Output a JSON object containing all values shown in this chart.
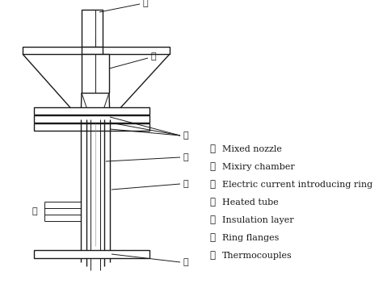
{
  "bg_color": "#ffffff",
  "line_color": "#1a1a1a",
  "legend_items": [
    [
      "①",
      "Mixed nozzle"
    ],
    [
      "②",
      "Mixiry chamber"
    ],
    [
      "③",
      "Electric current introducing ring"
    ],
    [
      "④",
      "Heated tube"
    ],
    [
      "⑤",
      "Insulation layer"
    ],
    [
      "⑥",
      "Ring flanges"
    ],
    [
      "⑦",
      "Thermocouples"
    ]
  ],
  "figsize": [
    4.74,
    3.57
  ],
  "dpi": 100
}
